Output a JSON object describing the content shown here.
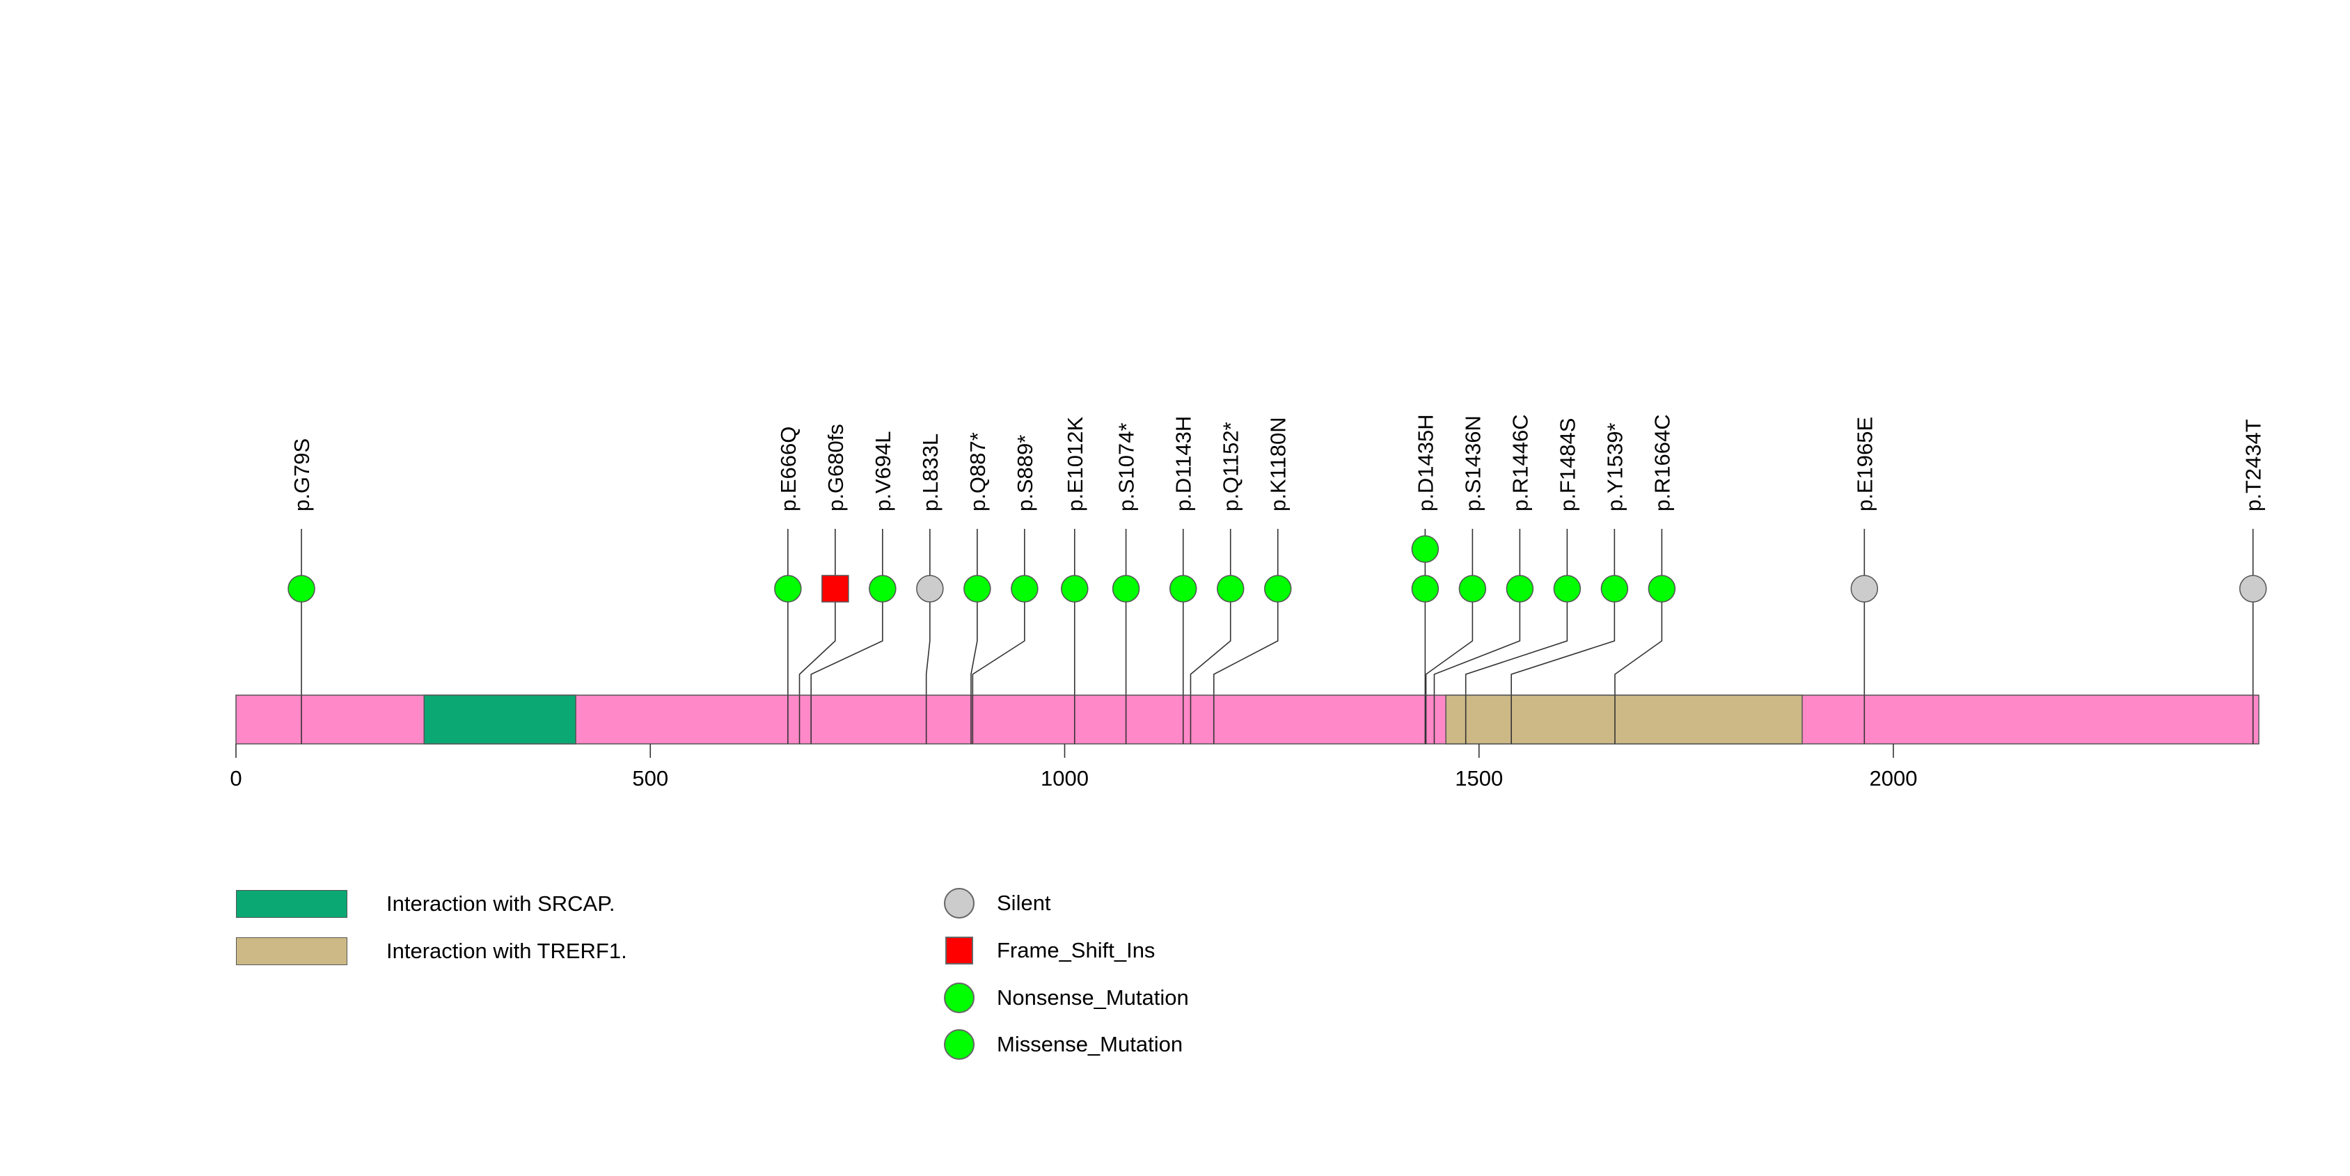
{
  "chart_data": {
    "type": "lollipop",
    "protein_length": 2441,
    "axis": {
      "min": 0,
      "max": 2441,
      "ticks": [
        0,
        500,
        1000,
        1500,
        2000
      ]
    },
    "backbone_color": "#ff88c8",
    "domains": [
      {
        "name": "Interaction with SRCAP.",
        "start": 227,
        "end": 410,
        "color": "#0ba873"
      },
      {
        "name": "Interaction with TRERF1.",
        "start": 1460,
        "end": 1890,
        "color": "#ccb986"
      }
    ],
    "mutations": [
      {
        "label": "p.G79S",
        "position": 79,
        "type": "Missense_Mutation",
        "count": 1
      },
      {
        "label": "p.E666Q",
        "position": 666,
        "type": "Missense_Mutation",
        "count": 1
      },
      {
        "label": "p.G680fs",
        "position": 680,
        "type": "Frame_Shift_Ins",
        "count": 1
      },
      {
        "label": "p.V694L",
        "position": 694,
        "type": "Missense_Mutation",
        "count": 1
      },
      {
        "label": "p.L833L",
        "position": 833,
        "type": "Silent",
        "count": 1
      },
      {
        "label": "p.Q887*",
        "position": 887,
        "type": "Nonsense_Mutation",
        "count": 1
      },
      {
        "label": "p.S889*",
        "position": 889,
        "type": "Nonsense_Mutation",
        "count": 1
      },
      {
        "label": "p.E1012K",
        "position": 1012,
        "type": "Missense_Mutation",
        "count": 1
      },
      {
        "label": "p.S1074*",
        "position": 1074,
        "type": "Nonsense_Mutation",
        "count": 1
      },
      {
        "label": "p.D1143H",
        "position": 1143,
        "type": "Missense_Mutation",
        "count": 1
      },
      {
        "label": "p.Q1152*",
        "position": 1152,
        "type": "Nonsense_Mutation",
        "count": 1
      },
      {
        "label": "p.K1180N",
        "position": 1180,
        "type": "Missense_Mutation",
        "count": 1
      },
      {
        "label": "p.D1435H",
        "position": 1435,
        "type": "Missense_Mutation",
        "count": 2
      },
      {
        "label": "p.S1436N",
        "position": 1436,
        "type": "Missense_Mutation",
        "count": 1
      },
      {
        "label": "p.R1446C",
        "position": 1446,
        "type": "Missense_Mutation",
        "count": 1
      },
      {
        "label": "p.F1484S",
        "position": 1484,
        "type": "Missense_Mutation",
        "count": 1
      },
      {
        "label": "p.Y1539*",
        "position": 1539,
        "type": "Nonsense_Mutation",
        "count": 1
      },
      {
        "label": "p.R1664C",
        "position": 1664,
        "type": "Missense_Mutation",
        "count": 1
      },
      {
        "label": "p.E1965E",
        "position": 1965,
        "type": "Silent",
        "count": 1
      },
      {
        "label": "p.T2434T",
        "position": 2434,
        "type": "Silent",
        "count": 1
      }
    ]
  },
  "legend": {
    "domains": [
      {
        "label": "Interaction with SRCAP.",
        "color": "#0ba873"
      },
      {
        "label": "Interaction with TRERF1.",
        "color": "#ccb986"
      }
    ],
    "mutation_types": [
      {
        "label": "Silent",
        "color": "#cccccc",
        "shape": "circle"
      },
      {
        "label": "Frame_Shift_Ins",
        "color": "#ff0000",
        "shape": "square"
      },
      {
        "label": "Nonsense_Mutation",
        "color": "#00ff00",
        "shape": "circle"
      },
      {
        "label": "Missense_Mutation",
        "color": "#00ff00",
        "shape": "circle"
      }
    ]
  }
}
